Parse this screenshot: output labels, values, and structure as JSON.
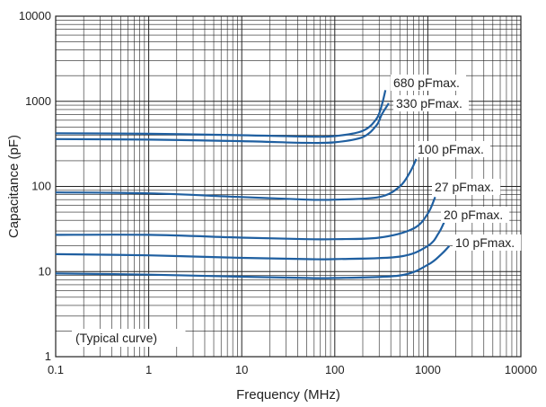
{
  "chart_data": {
    "type": "line",
    "title": "",
    "xlabel": "Frequency (MHz)",
    "ylabel": "Capacitance (pF)",
    "x_scale": "log",
    "y_scale": "log",
    "xlim": [
      0.1,
      10000
    ],
    "ylim": [
      1,
      10000
    ],
    "x_ticks": [
      "0.1",
      "1",
      "10",
      "100",
      "1000",
      "10000"
    ],
    "y_ticks": [
      "1",
      "10",
      "100",
      "1000",
      "10000"
    ],
    "grid": true,
    "annotation": "(Typical curve)",
    "line_color": "#1f5fa0",
    "series": [
      {
        "name": "680 pFmax.",
        "x": [
          0.1,
          1,
          10,
          50,
          100,
          200,
          280,
          320,
          350
        ],
        "y": [
          420,
          415,
          400,
          385,
          390,
          450,
          620,
          900,
          1350
        ]
      },
      {
        "name": "330 pFmax.",
        "x": [
          0.1,
          1,
          10,
          50,
          100,
          200,
          280,
          320,
          380
        ],
        "y": [
          360,
          355,
          340,
          325,
          330,
          380,
          520,
          700,
          950
        ]
      },
      {
        "name": "100 pFmax.",
        "x": [
          0.1,
          1,
          10,
          50,
          100,
          300,
          500,
          650,
          750
        ],
        "y": [
          85,
          83,
          75,
          70,
          70,
          75,
          100,
          150,
          210
        ]
      },
      {
        "name": "27 pFmax.",
        "x": [
          0.1,
          1,
          10,
          50,
          100,
          300,
          700,
          1000,
          1200
        ],
        "y": [
          27,
          27,
          25,
          24,
          24,
          25,
          32,
          48,
          75
        ]
      },
      {
        "name": "20 pFmax.",
        "x": [
          0.1,
          1,
          10,
          50,
          100,
          500,
          1000,
          1300,
          1500
        ],
        "y": [
          16,
          15.5,
          14.5,
          14,
          14,
          15,
          20,
          28,
          38
        ]
      },
      {
        "name": "10 pFmax.",
        "x": [
          0.1,
          1,
          10,
          50,
          100,
          500,
          1000,
          1400,
          1700
        ],
        "y": [
          9.5,
          9.2,
          8.7,
          8.4,
          8.4,
          9,
          12,
          16,
          20
        ]
      }
    ]
  }
}
